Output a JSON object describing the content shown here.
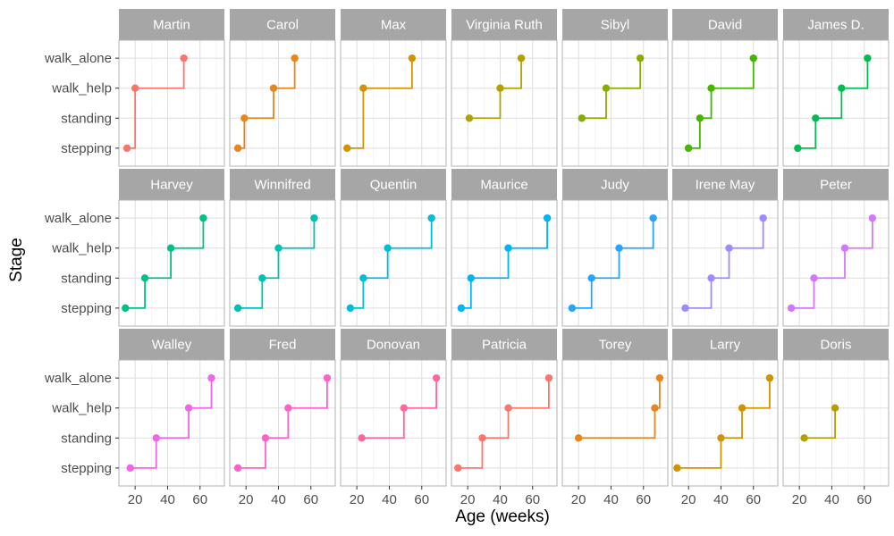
{
  "chart_data": {
    "type": "line",
    "style": "step",
    "xlabel": "Age (weeks)",
    "ylabel": "Stage",
    "xlim": [
      10,
      75
    ],
    "x_ticks": [
      20,
      40,
      60
    ],
    "y_levels": [
      "stepping",
      "standing",
      "walk_help",
      "walk_alone"
    ],
    "grid": true,
    "facets": [
      {
        "name": "Martin",
        "color": "#F8766D",
        "points": [
          {
            "x": 15,
            "stage": "stepping"
          },
          {
            "x": 20,
            "stage": "walk_help"
          },
          {
            "x": 50,
            "stage": "walk_alone"
          }
        ]
      },
      {
        "name": "Carol",
        "color": "#E7851E",
        "points": [
          {
            "x": 15,
            "stage": "stepping"
          },
          {
            "x": 19,
            "stage": "standing"
          },
          {
            "x": 37,
            "stage": "walk_help"
          },
          {
            "x": 50,
            "stage": "walk_alone"
          }
        ]
      },
      {
        "name": "Max",
        "color": "#D09400",
        "points": [
          {
            "x": 14,
            "stage": "stepping"
          },
          {
            "x": 24,
            "stage": "walk_help"
          },
          {
            "x": 54,
            "stage": "walk_alone"
          }
        ]
      },
      {
        "name": "Virginia Ruth",
        "color": "#B2A100",
        "points": [
          {
            "x": 21,
            "stage": "standing"
          },
          {
            "x": 40,
            "stage": "walk_help"
          },
          {
            "x": 53,
            "stage": "walk_alone"
          }
        ]
      },
      {
        "name": "Sibyl",
        "color": "#89AC00",
        "points": [
          {
            "x": 22,
            "stage": "standing"
          },
          {
            "x": 37,
            "stage": "walk_help"
          },
          {
            "x": 58,
            "stage": "walk_alone"
          }
        ]
      },
      {
        "name": "David",
        "color": "#45B500",
        "points": [
          {
            "x": 20,
            "stage": "stepping"
          },
          {
            "x": 27,
            "stage": "standing"
          },
          {
            "x": 34,
            "stage": "walk_help"
          },
          {
            "x": 60,
            "stage": "walk_alone"
          }
        ]
      },
      {
        "name": "James D.",
        "color": "#00BC51",
        "points": [
          {
            "x": 19,
            "stage": "stepping"
          },
          {
            "x": 30,
            "stage": "standing"
          },
          {
            "x": 46,
            "stage": "walk_help"
          },
          {
            "x": 62,
            "stage": "walk_alone"
          }
        ]
      },
      {
        "name": "Harvey",
        "color": "#00C087",
        "points": [
          {
            "x": 14,
            "stage": "stepping"
          },
          {
            "x": 26,
            "stage": "standing"
          },
          {
            "x": 42,
            "stage": "walk_help"
          },
          {
            "x": 62,
            "stage": "walk_alone"
          }
        ]
      },
      {
        "name": "Winnifred",
        "color": "#00C0B2",
        "points": [
          {
            "x": 15,
            "stage": "stepping"
          },
          {
            "x": 30,
            "stage": "standing"
          },
          {
            "x": 40,
            "stage": "walk_help"
          },
          {
            "x": 62,
            "stage": "walk_alone"
          }
        ]
      },
      {
        "name": "Quentin",
        "color": "#00BCD6",
        "points": [
          {
            "x": 16,
            "stage": "stepping"
          },
          {
            "x": 24,
            "stage": "standing"
          },
          {
            "x": 39,
            "stage": "walk_help"
          },
          {
            "x": 66,
            "stage": "walk_alone"
          }
        ]
      },
      {
        "name": "Maurice",
        "color": "#00B3F2",
        "points": [
          {
            "x": 16,
            "stage": "stepping"
          },
          {
            "x": 22,
            "stage": "standing"
          },
          {
            "x": 45,
            "stage": "walk_help"
          },
          {
            "x": 69,
            "stage": "walk_alone"
          }
        ]
      },
      {
        "name": "Judy",
        "color": "#29A3FF",
        "points": [
          {
            "x": 16,
            "stage": "stepping"
          },
          {
            "x": 28,
            "stage": "standing"
          },
          {
            "x": 45,
            "stage": "walk_help"
          },
          {
            "x": 66,
            "stage": "walk_alone"
          }
        ]
      },
      {
        "name": "Irene May",
        "color": "#9C8DFF",
        "points": [
          {
            "x": 18,
            "stage": "stepping"
          },
          {
            "x": 34,
            "stage": "standing"
          },
          {
            "x": 45,
            "stage": "walk_help"
          },
          {
            "x": 66,
            "stage": "walk_alone"
          }
        ]
      },
      {
        "name": "Peter",
        "color": "#D277FF",
        "points": [
          {
            "x": 15,
            "stage": "stepping"
          },
          {
            "x": 29,
            "stage": "standing"
          },
          {
            "x": 48,
            "stage": "walk_help"
          },
          {
            "x": 65,
            "stage": "walk_alone"
          }
        ]
      },
      {
        "name": "Walley",
        "color": "#F166E8",
        "points": [
          {
            "x": 17,
            "stage": "stepping"
          },
          {
            "x": 33,
            "stage": "standing"
          },
          {
            "x": 53,
            "stage": "walk_help"
          },
          {
            "x": 67,
            "stage": "walk_alone"
          }
        ]
      },
      {
        "name": "Fred",
        "color": "#FF61C7",
        "points": [
          {
            "x": 15,
            "stage": "stepping"
          },
          {
            "x": 32,
            "stage": "standing"
          },
          {
            "x": 46,
            "stage": "walk_help"
          },
          {
            "x": 70,
            "stage": "walk_alone"
          }
        ]
      },
      {
        "name": "Donovan",
        "color": "#FF689E",
        "points": [
          {
            "x": 23,
            "stage": "standing"
          },
          {
            "x": 49,
            "stage": "walk_help"
          },
          {
            "x": 69,
            "stage": "walk_alone"
          }
        ]
      },
      {
        "name": "Patricia",
        "color": "#F8766D",
        "points": [
          {
            "x": 14,
            "stage": "stepping"
          },
          {
            "x": 29,
            "stage": "standing"
          },
          {
            "x": 45,
            "stage": "walk_help"
          },
          {
            "x": 70,
            "stage": "walk_alone"
          }
        ]
      },
      {
        "name": "Torey",
        "color": "#E7851E",
        "points": [
          {
            "x": 20,
            "stage": "standing"
          },
          {
            "x": 67,
            "stage": "walk_help"
          },
          {
            "x": 70,
            "stage": "walk_alone"
          }
        ]
      },
      {
        "name": "Larry",
        "color": "#D09400",
        "points": [
          {
            "x": 13,
            "stage": "stepping"
          },
          {
            "x": 40,
            "stage": "standing"
          },
          {
            "x": 53,
            "stage": "walk_help"
          },
          {
            "x": 70,
            "stage": "walk_alone"
          }
        ]
      },
      {
        "name": "Doris",
        "color": "#B2A100",
        "points": [
          {
            "x": 23,
            "stage": "standing"
          },
          {
            "x": 42,
            "stage": "walk_help"
          }
        ]
      }
    ]
  }
}
